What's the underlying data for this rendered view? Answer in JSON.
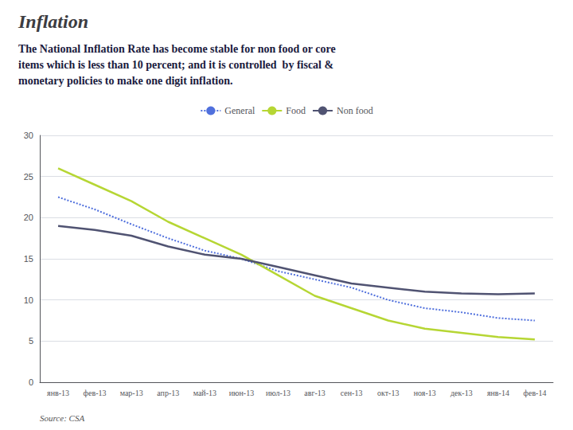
{
  "chart_data": {
    "type": "line",
    "title": "Inflation",
    "subtitle": "The National Inflation Rate has become stable for non food or core\nitems which is less than 10 percent; and it is controlled  by fiscal &\nmonetary policies to make one digit inflation.",
    "annotations": [
      "Source: CSA"
    ],
    "categories": [
      "янв-13",
      "фев-13",
      "мар-13",
      "апр-13",
      "май-13",
      "июн-13",
      "июл-13",
      "авг-13",
      "сен-13",
      "окт-13",
      "ноя-13",
      "дек-13",
      "янв-14",
      "фев-14"
    ],
    "series": [
      {
        "name": "General",
        "line_style": "dotted",
        "values": [
          22.5,
          21.0,
          19.2,
          17.5,
          16.0,
          15.0,
          13.5,
          12.5,
          11.5,
          10.0,
          9.0,
          8.5,
          7.8,
          7.5
        ]
      },
      {
        "name": "Food",
        "line_style": "solid",
        "values": [
          26.0,
          24.0,
          22.0,
          19.5,
          17.5,
          15.5,
          13.0,
          10.5,
          9.0,
          7.5,
          6.5,
          6.0,
          5.5,
          5.2
        ]
      },
      {
        "name": "Non food",
        "line_style": "solid",
        "values": [
          19.0,
          18.5,
          17.8,
          16.5,
          15.5,
          15.0,
          14.0,
          13.0,
          12.0,
          11.5,
          11.0,
          10.8,
          10.7,
          10.8
        ]
      }
    ],
    "ylim": [
      0,
      30
    ],
    "yticks": [
      0,
      5,
      10,
      15,
      20,
      25,
      30
    ],
    "grid": true,
    "legend": "top"
  }
}
